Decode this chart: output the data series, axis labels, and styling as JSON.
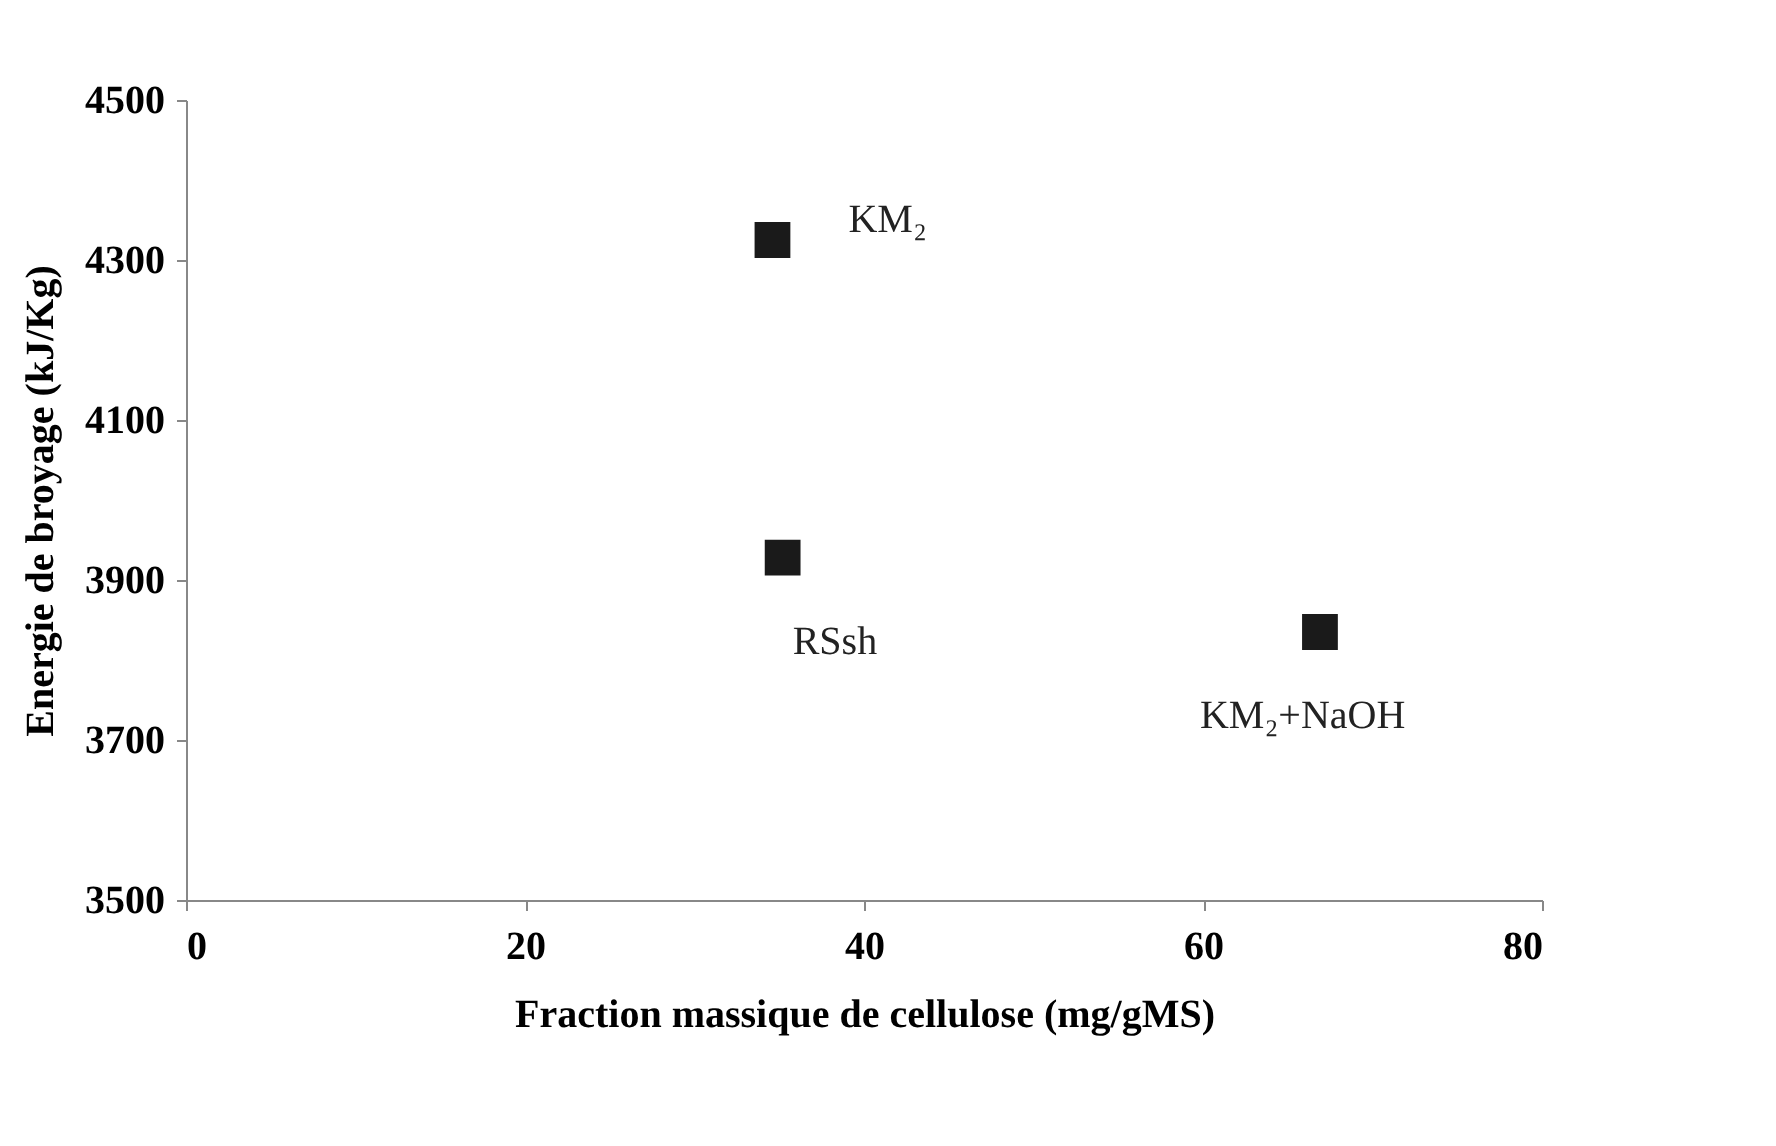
{
  "chart_data": {
    "type": "scatter",
    "xlabel": "Fraction massique de cellulose (mg/gMS)",
    "ylabel": "Energie de broyage (kJ/Kg)",
    "x": [
      34.6,
      35.2,
      66.9
    ],
    "series": [
      {
        "color": "#1a1a1a",
        "values": [
          4325,
          3928,
          3835
        ]
      }
    ],
    "xlim": [
      0,
      80
    ],
    "xticks": [
      0,
      20,
      40,
      60,
      80
    ],
    "ylim": [
      3500,
      4500
    ],
    "yticks": [
      3500,
      3700,
      3900,
      4100,
      4300,
      4500
    ],
    "marker": "square",
    "grid": false,
    "annotations": [
      {
        "text": "KM₂",
        "x": 34.6,
        "y": 4325
      },
      {
        "text": "RSsh",
        "x": 35.2,
        "y": 3928
      },
      {
        "text": "KM₂+NaOH",
        "x": 66.9,
        "y": 3835
      }
    ]
  }
}
